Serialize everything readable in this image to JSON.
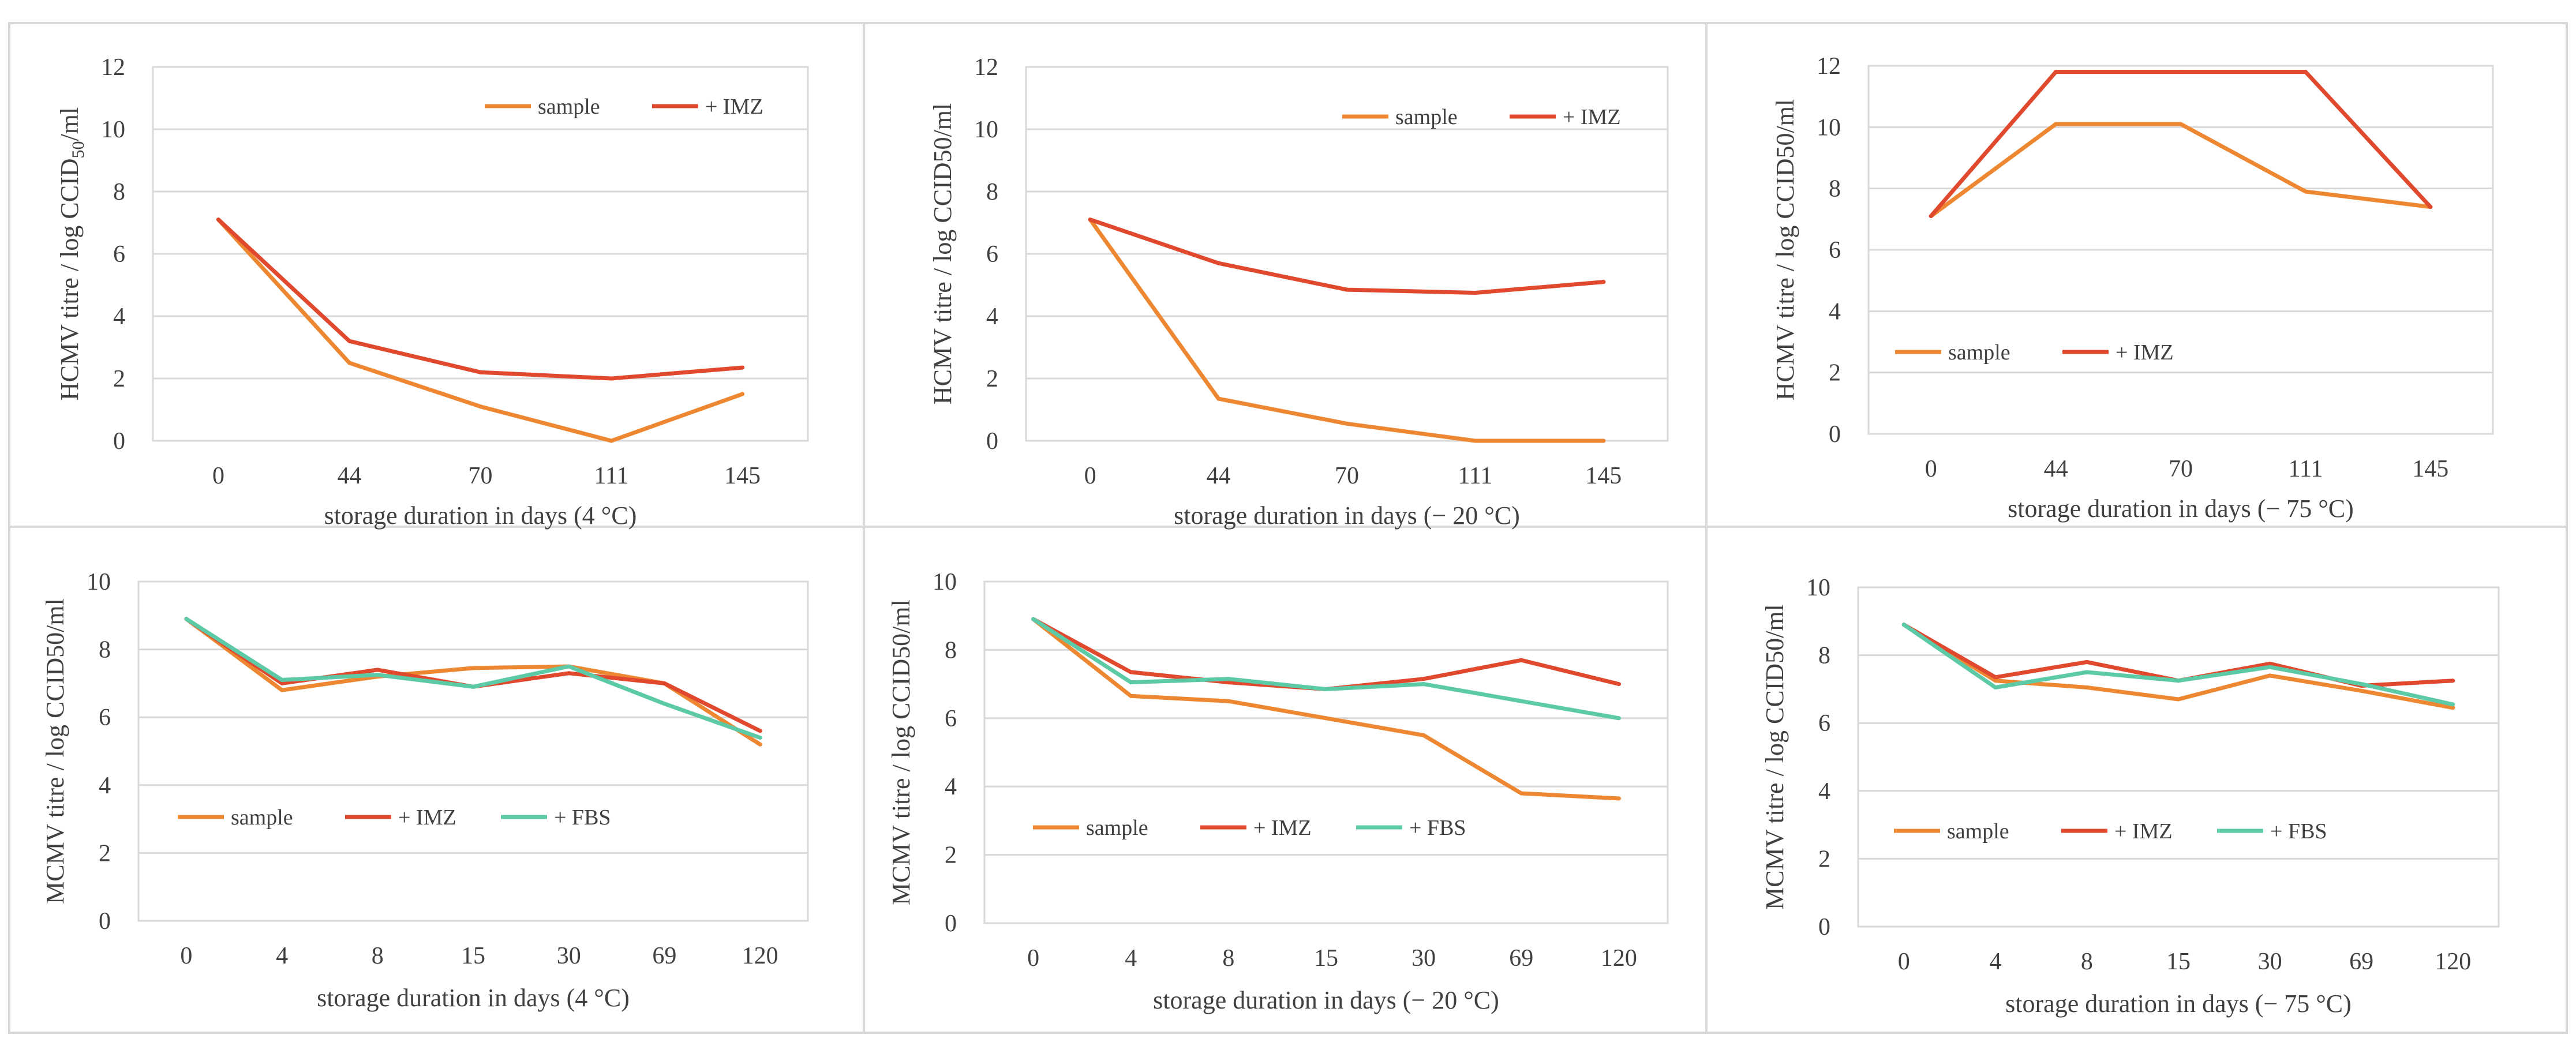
{
  "colors": {
    "sample": "#EE8732",
    "imz": "#E0492E",
    "fbs": "#5CC9A7",
    "grid": "#d9d9d9",
    "panel_border": "#d9d9d9",
    "text": "#404040"
  },
  "chart_data": [
    {
      "type": "line",
      "title": "",
      "xlabel": "storage duration in days (4 °C)",
      "ylabel_main": "HCMV titre / log CCID",
      "ylabel_sub": "50",
      "ylabel_tail": "/ml",
      "categories": [
        "0",
        "44",
        "70",
        "111",
        "145"
      ],
      "ylim": [
        0,
        12
      ],
      "yticks": [
        "0",
        "2",
        "4",
        "6",
        "8",
        "10",
        "12"
      ],
      "legend_position": "top-right",
      "series": [
        {
          "name": "sample",
          "color_key": "sample",
          "values": [
            7.1,
            2.5,
            1.1,
            0.0,
            1.5
          ]
        },
        {
          "name": "+ IMZ",
          "color_key": "imz",
          "values": [
            7.1,
            3.2,
            2.2,
            2.0,
            2.35
          ]
        }
      ]
    },
    {
      "type": "line",
      "title": "",
      "xlabel": "storage duration in days (− 20 °C)",
      "ylabel_main": "HCMV titre / log CCID50/ml",
      "categories": [
        "0",
        "44",
        "70",
        "111",
        "145"
      ],
      "ylim": [
        0,
        12
      ],
      "yticks": [
        "0",
        "2",
        "4",
        "6",
        "8",
        "10",
        "12"
      ],
      "legend_position": "top-right",
      "series": [
        {
          "name": "sample",
          "color_key": "sample",
          "values": [
            7.1,
            1.35,
            0.55,
            0.0,
            0.0
          ]
        },
        {
          "name": "+ IMZ",
          "color_key": "imz",
          "values": [
            7.1,
            5.7,
            4.85,
            4.75,
            5.1
          ]
        }
      ]
    },
    {
      "type": "line",
      "title": "",
      "xlabel": "storage duration in days (− 75 °C)",
      "ylabel_main": "HCMV titre / log CCID50/ml",
      "categories": [
        "0",
        "44",
        "70",
        "111",
        "145"
      ],
      "ylim": [
        0,
        12
      ],
      "yticks": [
        "0",
        "2",
        "4",
        "6",
        "8",
        "10",
        "12"
      ],
      "legend_position": "bottom-left",
      "series": [
        {
          "name": "sample",
          "color_key": "sample",
          "values": [
            7.1,
            10.1,
            10.1,
            7.9,
            7.4
          ]
        },
        {
          "name": "+ IMZ",
          "color_key": "imz",
          "values": [
            7.1,
            11.8,
            11.8,
            11.8,
            7.4
          ]
        }
      ]
    },
    {
      "type": "line",
      "title": "",
      "xlabel": "storage duration in days (4 °C)",
      "ylabel_main": "MCMV titre / log CCID50/ml",
      "categories": [
        "0",
        "4",
        "8",
        "15",
        "30",
        "69",
        "120"
      ],
      "ylim": [
        0,
        10
      ],
      "yticks": [
        "0",
        "2",
        "4",
        "6",
        "8",
        "10"
      ],
      "legend_position": "bottom-left",
      "series": [
        {
          "name": "sample",
          "color_key": "sample",
          "values": [
            8.9,
            6.8,
            7.2,
            7.45,
            7.5,
            7.0,
            5.2
          ]
        },
        {
          "name": "+ IMZ",
          "color_key": "imz",
          "values": [
            8.9,
            7.0,
            7.4,
            6.9,
            7.3,
            7.0,
            5.6
          ]
        },
        {
          "name": "+ FBS",
          "color_key": "fbs",
          "values": [
            8.9,
            7.1,
            7.25,
            6.9,
            7.5,
            6.4,
            5.4
          ]
        }
      ]
    },
    {
      "type": "line",
      "title": "",
      "xlabel": "storage duration in days (− 20 °C)",
      "ylabel_main": "MCMV titre / log CCID50/ml",
      "categories": [
        "0",
        "4",
        "8",
        "15",
        "30",
        "69",
        "120"
      ],
      "ylim": [
        0,
        10
      ],
      "yticks": [
        "0",
        "2",
        "4",
        "6",
        "8",
        "10"
      ],
      "legend_position": "bottom-left",
      "series": [
        {
          "name": "sample",
          "color_key": "sample",
          "values": [
            8.9,
            6.65,
            6.5,
            6.0,
            5.5,
            3.8,
            3.65
          ]
        },
        {
          "name": "+ IMZ",
          "color_key": "imz",
          "values": [
            8.9,
            7.35,
            7.05,
            6.85,
            7.15,
            7.7,
            7.0
          ]
        },
        {
          "name": "+ FBS",
          "color_key": "fbs",
          "values": [
            8.9,
            7.05,
            7.15,
            6.85,
            7.0,
            6.5,
            6.0
          ]
        }
      ]
    },
    {
      "type": "line",
      "title": "",
      "xlabel": "storage duration in days (− 75 °C)",
      "ylabel_main": "MCMV titre / log CCID50/ml",
      "categories": [
        "0",
        "4",
        "8",
        "15",
        "30",
        "69",
        "120"
      ],
      "ylim": [
        0,
        10
      ],
      "yticks": [
        "0",
        "2",
        "4",
        "6",
        "8",
        "10"
      ],
      "legend_position": "bottom-left",
      "series": [
        {
          "name": "sample",
          "color_key": "sample",
          "values": [
            8.9,
            7.25,
            7.05,
            6.7,
            7.4,
            6.95,
            6.45
          ]
        },
        {
          "name": "+ IMZ",
          "color_key": "imz",
          "values": [
            8.9,
            7.35,
            7.8,
            7.25,
            7.75,
            7.1,
            7.25
          ]
        },
        {
          "name": "+ FBS",
          "color_key": "fbs",
          "values": [
            8.9,
            7.05,
            7.5,
            7.25,
            7.65,
            7.15,
            6.55
          ]
        }
      ]
    }
  ]
}
